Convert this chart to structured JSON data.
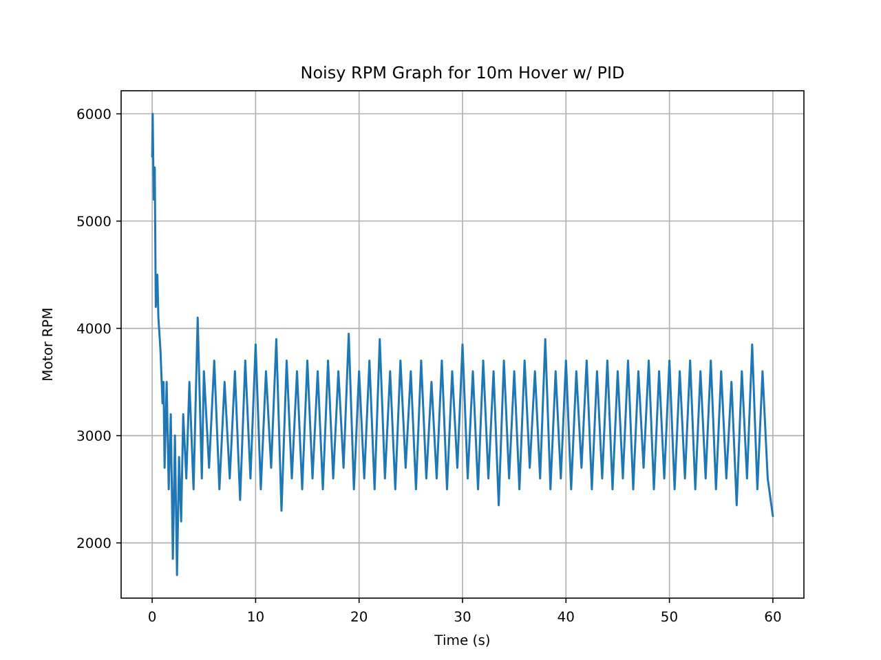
{
  "chart_data": {
    "type": "line",
    "title": "Noisy RPM Graph for 10m Hover w/ PID",
    "xlabel": "Time (s)",
    "ylabel": "Motor RPM",
    "xlim": [
      -3,
      63
    ],
    "ylim": [
      1485,
      6215
    ],
    "xticks": [
      0,
      10,
      20,
      30,
      40,
      50,
      60
    ],
    "yticks": [
      2000,
      3000,
      4000,
      5000,
      6000
    ],
    "grid": true,
    "series": [
      {
        "color": "#1f77b4",
        "x": [
          0,
          0.05,
          0.15,
          0.25,
          0.35,
          0.5,
          0.6,
          0.8,
          1.0,
          1.1,
          1.2,
          1.4,
          1.6,
          1.8,
          2.0,
          2.2,
          2.4,
          2.6,
          2.8,
          3.0,
          3.3,
          3.6,
          4.0,
          4.4,
          4.8,
          5,
          5.5,
          6,
          6.5,
          7,
          7.5,
          8,
          8.5,
          9,
          9.5,
          10,
          10.5,
          11,
          11.5,
          12,
          12.5,
          13,
          13.5,
          14,
          14.5,
          15,
          15.5,
          16,
          16.5,
          17,
          17.5,
          18,
          18.5,
          19,
          19.5,
          20,
          20.5,
          21,
          21.5,
          22,
          22.5,
          23,
          23.5,
          24,
          24.5,
          25,
          25.5,
          26,
          26.5,
          27,
          27.5,
          28,
          28.5,
          29,
          29.5,
          30,
          30.5,
          31,
          31.5,
          32,
          32.5,
          33,
          33.5,
          34,
          34.5,
          35,
          35.5,
          36,
          36.5,
          37,
          37.5,
          38,
          38.5,
          39,
          39.5,
          40,
          40.5,
          41,
          41.5,
          42,
          42.5,
          43,
          43.5,
          44,
          44.5,
          45,
          45.5,
          46,
          46.5,
          47,
          47.5,
          48,
          48.5,
          49,
          49.5,
          50,
          50.5,
          51,
          51.5,
          52,
          52.5,
          53,
          53.5,
          54,
          54.5,
          55,
          55.5,
          56,
          56.5,
          57,
          57.5,
          58,
          58.5,
          59,
          59.5,
          60
        ],
        "values": [
          5600,
          6000,
          5200,
          5500,
          4200,
          4500,
          4100,
          3800,
          3300,
          3500,
          2700,
          3500,
          2500,
          3200,
          1850,
          3000,
          1700,
          2800,
          2200,
          3200,
          2600,
          3500,
          2500,
          4100,
          2600,
          3600,
          2700,
          3700,
          2500,
          3500,
          2600,
          3600,
          2400,
          3700,
          2600,
          3850,
          2500,
          3600,
          2700,
          3900,
          2300,
          3700,
          2600,
          3600,
          2500,
          3700,
          2600,
          3600,
          2500,
          3700,
          2600,
          3600,
          2700,
          3950,
          2500,
          3600,
          2600,
          3700,
          2500,
          3900,
          2600,
          3600,
          2500,
          3700,
          2700,
          3600,
          2500,
          3700,
          2600,
          3500,
          2600,
          3700,
          2500,
          3600,
          2700,
          3850,
          2600,
          3600,
          2500,
          3700,
          2600,
          3600,
          2350,
          3700,
          2600,
          3600,
          2500,
          3700,
          2700,
          3600,
          2600,
          3900,
          2500,
          3600,
          2600,
          3700,
          2500,
          3600,
          2700,
          3700,
          2500,
          3600,
          2600,
          3700,
          2500,
          3600,
          2600,
          3700,
          2500,
          3600,
          2700,
          3700,
          2500,
          3600,
          2600,
          3700,
          2500,
          3600,
          2600,
          3700,
          2500,
          3600,
          2600,
          3700,
          2500,
          3600,
          2600,
          3500,
          2350,
          3600,
          2600,
          3850,
          2500,
          3600,
          2600,
          2250
        ]
      }
    ]
  }
}
